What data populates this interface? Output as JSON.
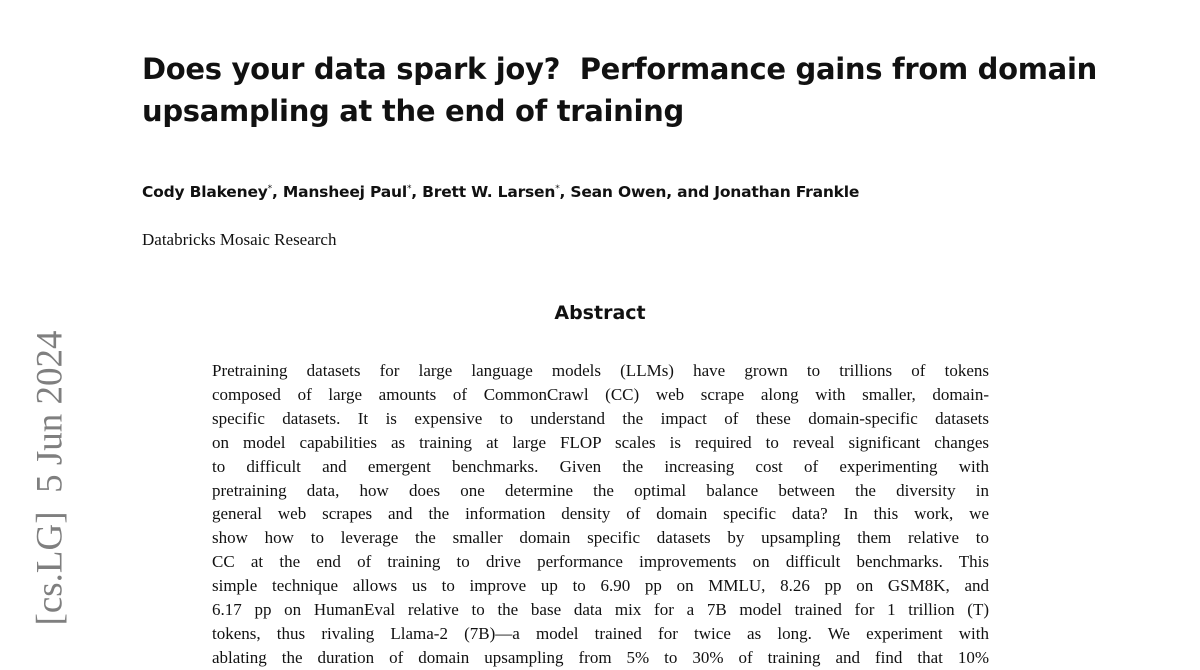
{
  "paper": {
    "arxiv_stamp": "[cs.LG]  5 Jun 2024",
    "title_lines": [
      "Does your data spark joy?  Performance gains from domain",
      "upsampling at the end of training"
    ],
    "author_line": [
      {
        "text": "Cody Blakeney",
        "sup": "*"
      },
      {
        "text": ", Mansheej Paul",
        "sup": "*"
      },
      {
        "text": ", Brett W. Larsen",
        "sup": "*"
      },
      {
        "text": ", Sean Owen, and Jonathan Frankle"
      }
    ],
    "affiliation": "Databricks Mosaic Research",
    "abstract_heading": "Abstract",
    "abstract_lines": [
      "Pretraining datasets for large language models (LLMs) have grown to trillions of tokens",
      "composed of large amounts of CommonCrawl (CC) web scrape along with smaller, domain-",
      "specific datasets. It is expensive to understand the impact of these domain-specific datasets",
      "on model capabilities as training at large FLOP scales is required to reveal significant changes",
      "to difficult and emergent benchmarks.  Given the increasing cost of experimenting with",
      "pretraining data, how does one determine the optimal balance between the diversity in",
      "general web scrapes and the information density of domain specific data? In this work, we",
      "show how to leverage the smaller domain specific datasets by upsampling them relative to",
      "CC at the end of training to drive performance improvements on difficult benchmarks. This",
      "simple technique allows us to improve up to 6.90 pp on MMLU, 8.26 pp on GSM8K, and",
      "6.17 pp on HumanEval relative to the base data mix for a 7B model trained for 1 trillion (T)",
      "tokens, thus rivaling Llama-2 (7B)—a model trained for twice as long. We experiment with",
      "ablating the duration of domain upsampling from 5% to 30% of training and find that 10%"
    ]
  }
}
